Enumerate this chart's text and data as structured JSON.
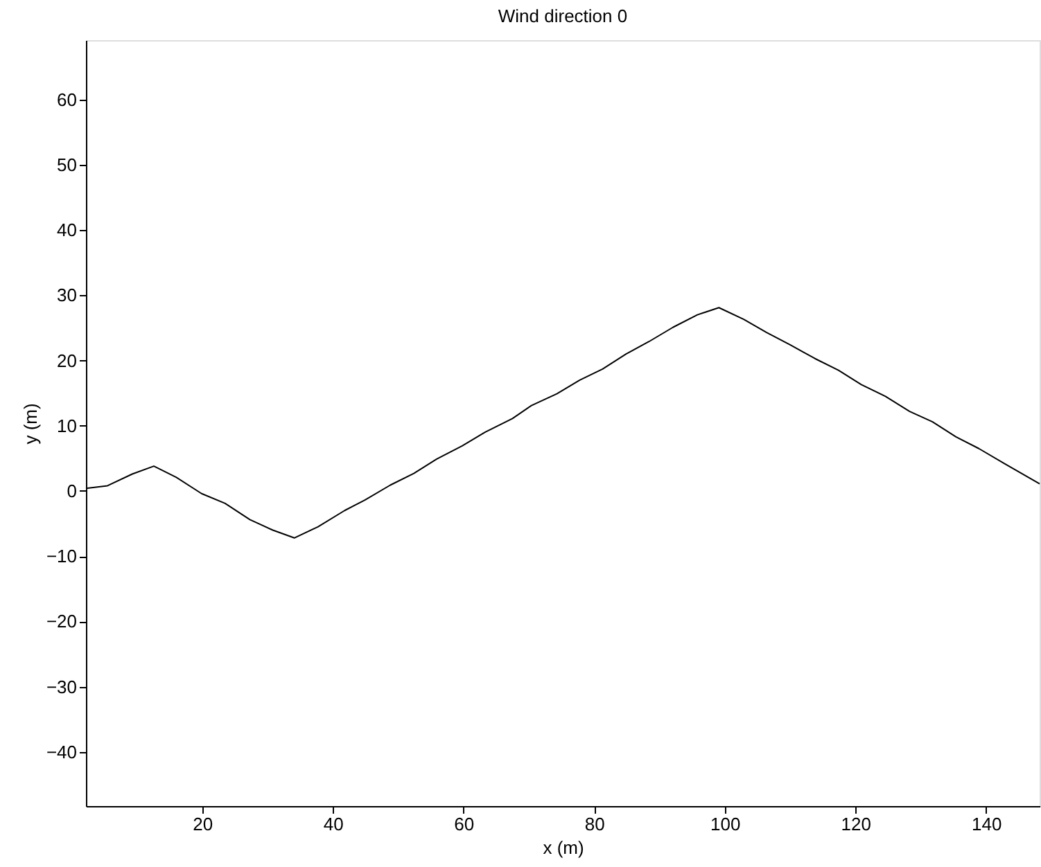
{
  "chart_data": {
    "type": "line",
    "title": "Wind direction 0",
    "xlabel": "x (m)",
    "ylabel": "y (m)",
    "xlim": [
      2.2,
      148.2
    ],
    "ylim": [
      -48.3,
      69.1
    ],
    "xticks": [
      20,
      40,
      60,
      80,
      100,
      120,
      140
    ],
    "yticks": [
      -40,
      -30,
      -20,
      -10,
      0,
      10,
      20,
      30,
      40,
      50,
      60
    ],
    "grid": false,
    "legend": false,
    "line_style": "solid",
    "marker": "none",
    "series": [
      {
        "color": "#000000",
        "x": [
          2.2,
          5.5,
          9.3,
          12.6,
          16.0,
          19.9,
          23.5,
          27.3,
          30.8,
          34.1,
          37.7,
          41.8,
          44.9,
          48.8,
          52.4,
          55.9,
          59.8,
          63.3,
          67.5,
          70.4,
          74.3,
          77.8,
          81.3,
          84.9,
          88.4,
          92.1,
          95.8,
          99.1,
          102.9,
          106.4,
          110.0,
          113.8,
          117.4,
          120.9,
          124.6,
          128.3,
          131.8,
          135.4,
          138.9,
          142.8,
          148.2
        ],
        "values": [
          0.4,
          0.8,
          2.6,
          3.8,
          2.1,
          -0.4,
          -1.9,
          -4.4,
          -6.0,
          -7.2,
          -5.5,
          -3.0,
          -1.4,
          0.9,
          2.7,
          4.9,
          6.9,
          9.0,
          11.1,
          13.1,
          14.9,
          17.0,
          18.7,
          21.0,
          22.9,
          25.1,
          27.0,
          28.1,
          26.3,
          24.3,
          22.4,
          20.3,
          18.5,
          16.3,
          14.5,
          12.2,
          10.6,
          8.3,
          6.5,
          4.2,
          1.1
        ]
      }
    ]
  }
}
